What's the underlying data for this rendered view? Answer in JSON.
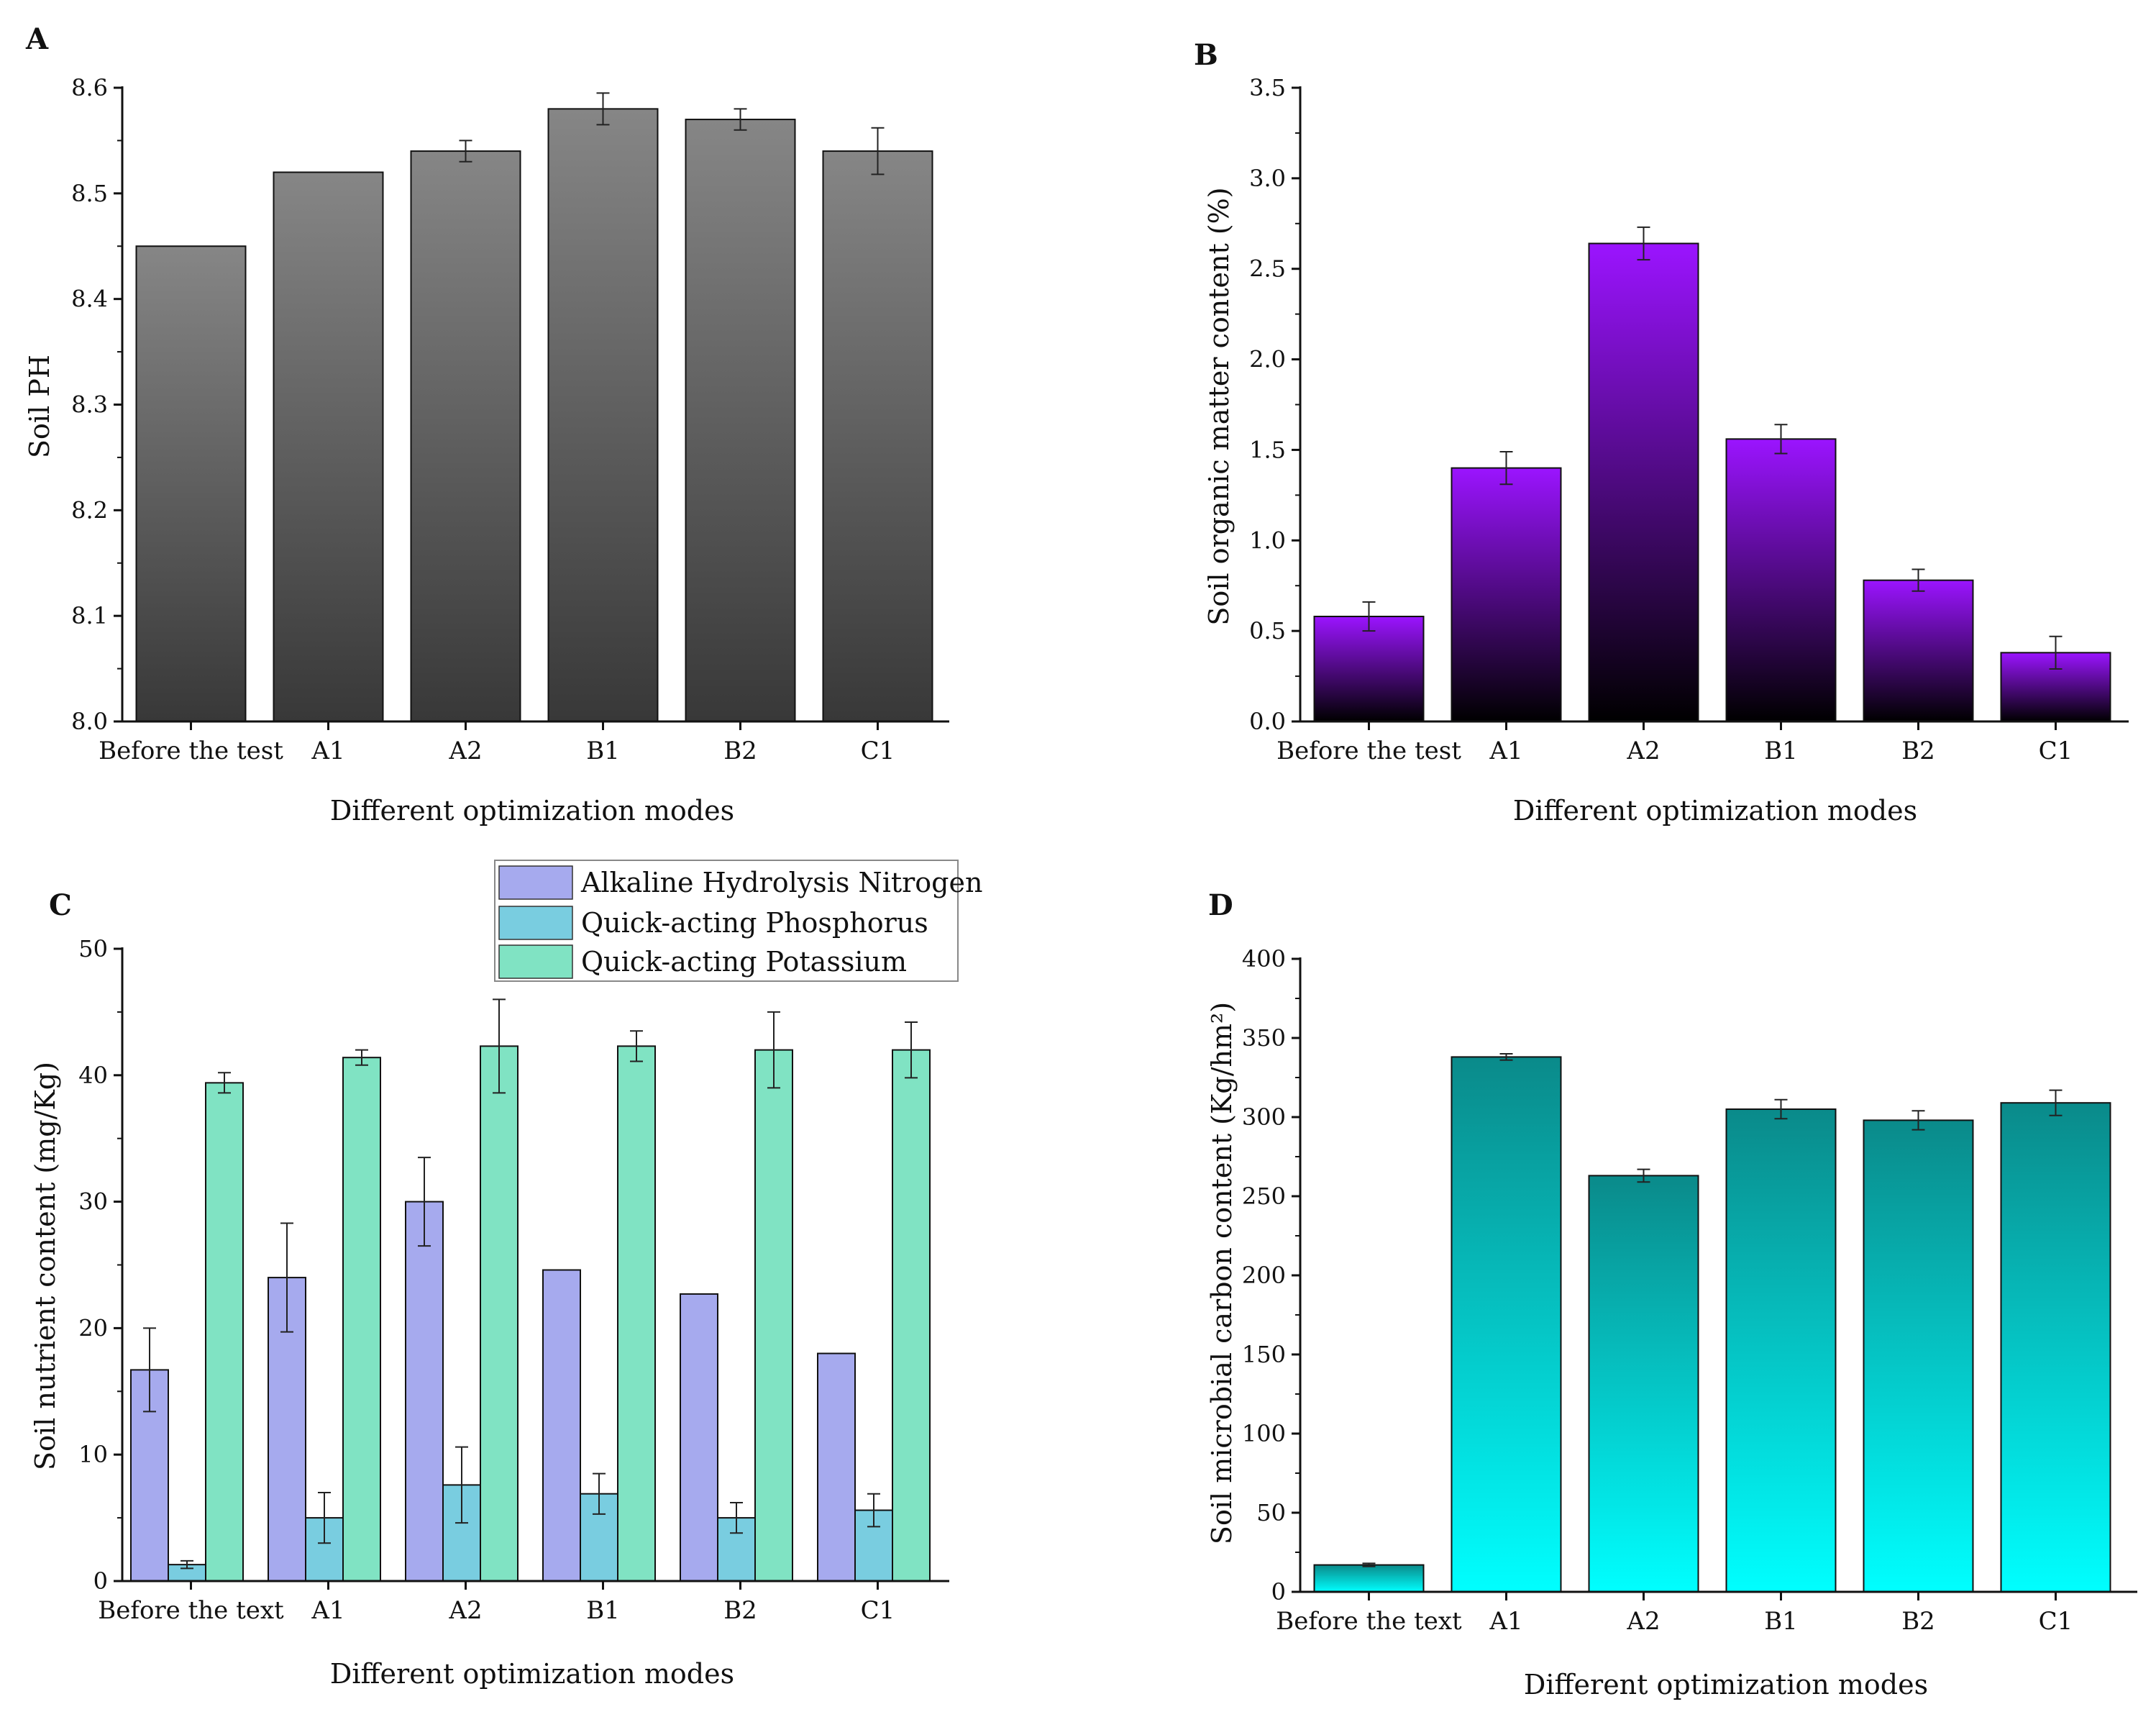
{
  "chart_data": [
    {
      "panel": "A",
      "type": "bar",
      "title": "",
      "xlabel": "Different optimization modes",
      "ylabel": "Soil PH",
      "categories": [
        "Before the test",
        "A1",
        "A2",
        "B1",
        "B2",
        "C1"
      ],
      "ylim": [
        8.0,
        8.6
      ],
      "yticks": [
        "8.0",
        "8.1",
        "8.2",
        "8.3",
        "8.4",
        "8.5",
        "8.6"
      ],
      "series": [
        {
          "name": "Soil PH",
          "values": [
            8.45,
            8.52,
            8.54,
            8.58,
            8.57,
            8.54
          ],
          "errors": [
            0.0,
            0.0,
            0.01,
            0.015,
            0.01,
            0.022
          ]
        }
      ],
      "colors": {
        "top": "#868686",
        "bottom": "#383838"
      }
    },
    {
      "panel": "B",
      "type": "bar",
      "title": "",
      "xlabel": "Different optimization modes",
      "ylabel": "Soil organic matter content (%)",
      "categories": [
        "Before the test",
        "A1",
        "A2",
        "B1",
        "B2",
        "C1"
      ],
      "ylim": [
        0.0,
        3.5
      ],
      "yticks": [
        "0.0",
        "0.5",
        "1.0",
        "1.5",
        "2.0",
        "2.5",
        "3.0",
        "3.5"
      ],
      "series": [
        {
          "name": "Soil organic matter content (%)",
          "values": [
            0.58,
            1.4,
            2.64,
            1.56,
            0.78,
            0.38
          ],
          "errors": [
            0.08,
            0.09,
            0.09,
            0.08,
            0.06,
            0.09
          ]
        }
      ],
      "colors": {
        "top": "#9b14ff",
        "bottom": "#000000"
      }
    },
    {
      "panel": "C",
      "type": "bar",
      "title": "",
      "xlabel": "Different optimization modes",
      "ylabel": "Soil nutrient content (mg/Kg)",
      "categories": [
        "Before the text",
        "A1",
        "A2",
        "B1",
        "B2",
        "C1"
      ],
      "ylim": [
        0,
        50
      ],
      "yticks": [
        "0",
        "10",
        "20",
        "30",
        "40",
        "50"
      ],
      "legend_position": "top-right",
      "series": [
        {
          "name": "Alkaline Hydrolysis Nitrogen",
          "values": [
            16.7,
            24.0,
            30.0,
            24.6,
            22.7,
            18.0
          ],
          "errors": [
            3.3,
            4.3,
            3.5,
            0.0,
            0.0,
            0.0
          ],
          "color": "#a6aaee"
        },
        {
          "name": "Quick-acting Phosphorus",
          "values": [
            1.3,
            5.0,
            7.6,
            6.9,
            5.0,
            5.6
          ],
          "errors": [
            0.3,
            2.0,
            3.0,
            1.6,
            1.2,
            1.3
          ],
          "color": "#79cde0"
        },
        {
          "name": "Quick-acting Potassium",
          "values": [
            39.4,
            41.4,
            42.3,
            42.3,
            42.0,
            42.0
          ],
          "errors": [
            0.8,
            0.6,
            3.7,
            1.2,
            3.0,
            2.2
          ],
          "color": "#80e3c3"
        }
      ]
    },
    {
      "panel": "D",
      "type": "bar",
      "title": "",
      "xlabel": "Different optimization modes",
      "ylabel": "Soil microbial carbon content (Kg/hm²)",
      "categories": [
        "Before the text",
        "A1",
        "A2",
        "B1",
        "B2",
        "C1"
      ],
      "ylim": [
        0,
        400
      ],
      "yticks": [
        "0",
        "50",
        "100",
        "150",
        "200",
        "250",
        "300",
        "350",
        "400"
      ],
      "series": [
        {
          "name": "Soil microbial carbon content",
          "values": [
            17,
            338,
            263,
            305,
            298,
            309
          ],
          "errors": [
            1,
            2,
            4,
            6,
            6,
            8
          ]
        }
      ],
      "colors": {
        "top": "#0a8a8a",
        "bottom": "#00ffff"
      }
    }
  ]
}
